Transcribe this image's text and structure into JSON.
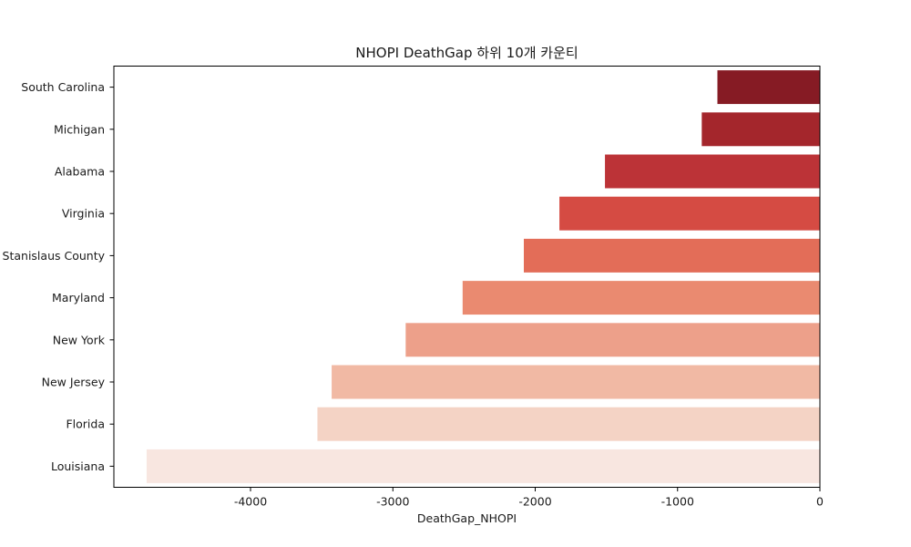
{
  "chart_data": {
    "type": "bar",
    "orientation": "horizontal",
    "title": "NHOPI DeathGap 하위 10개 카운티",
    "xlabel": "DeathGap_NHOPI",
    "ylabel": "",
    "categories": [
      "South Carolina",
      "Michigan",
      "Alabama",
      "Virginia",
      "Stanislaus County",
      "Maryland",
      "New York",
      "New Jersey",
      "Florida",
      "Louisiana"
    ],
    "values": [
      -720,
      -830,
      -1510,
      -1830,
      -2080,
      -2510,
      -2910,
      -3430,
      -3530,
      -4730
    ],
    "colors": [
      "#861b24",
      "#a4262c",
      "#bc3337",
      "#d54b43",
      "#e36d58",
      "#ea8a70",
      "#eda08a",
      "#f1b9a4",
      "#f4d3c5",
      "#f8e6e0"
    ],
    "xlim": [
      -4960,
      0
    ],
    "xticks": [
      -4000,
      -3000,
      -2000,
      -1000,
      0
    ],
    "xtick_labels": [
      "-4000",
      "-3000",
      "-2000",
      "-1000",
      "0"
    ],
    "grid": false,
    "legend": "none"
  }
}
